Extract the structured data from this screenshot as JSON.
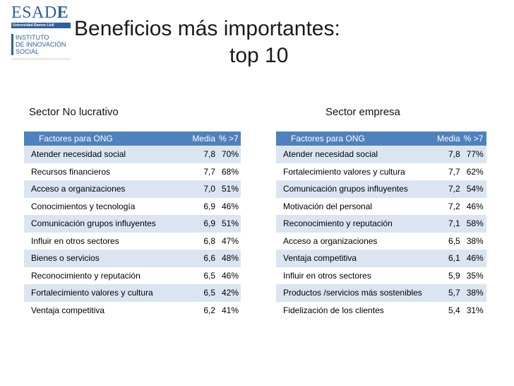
{
  "logo": {
    "wordmark_a": "ESAD",
    "wordmark_b": "E",
    "band": "Universidad Ramon Llull",
    "inst_lines": [
      "INSTITUTO",
      "DE INNOVACIÓN",
      "SOCIAL"
    ]
  },
  "title": {
    "line1": "Beneficios más importantes:",
    "line2": "top 10"
  },
  "sections": {
    "left": "Sector No lucrativo",
    "right": "Sector empresa"
  },
  "tables": {
    "left": {
      "headers": [
        "Factores para ONG",
        "Media",
        "% >7"
      ],
      "rows": [
        [
          "Atender necesidad social",
          "7,8",
          "70%"
        ],
        [
          "Recursos financieros",
          "7,7",
          "68%"
        ],
        [
          "Acceso a organizaciones",
          "7,0",
          "51%"
        ],
        [
          "Conocimientos y tecnología",
          "6,9",
          "46%"
        ],
        [
          "Comunicación grupos influyentes",
          "6,9",
          "51%"
        ],
        [
          "Influir en otros sectores",
          "6,8",
          "47%"
        ],
        [
          "Bienes o servicios",
          "6,6",
          "48%"
        ],
        [
          "Reconocimiento y reputación",
          "6,5",
          "46%"
        ],
        [
          "Fortalecimiento valores y cultura",
          "6,5",
          "42%"
        ],
        [
          "Ventaja competitiva",
          "6,2",
          "41%"
        ]
      ]
    },
    "right": {
      "headers": [
        "Factores para ONG",
        "Media",
        "% >7"
      ],
      "rows": [
        [
          "Atender necesidad social",
          "7,8",
          "77%"
        ],
        [
          "Fortalecimiento valores y cultura",
          "7,7",
          "62%"
        ],
        [
          "Comunicación grupos influyentes",
          "7,2",
          "54%"
        ],
        [
          "Motivación del personal",
          "7,2",
          "46%"
        ],
        [
          "Reconocimiento y reputación",
          "7,1",
          "58%"
        ],
        [
          "Acceso a organizaciones",
          "6,5",
          "38%"
        ],
        [
          "Ventaja competitiva",
          "6,1",
          "46%"
        ],
        [
          "Influir en otros sectores",
          "5,9",
          "35%"
        ],
        [
          "Productos /servicios más sostenibles",
          "5,7",
          "38%"
        ],
        [
          "Fidelización de los clientes",
          "5,4",
          "31%"
        ]
      ]
    }
  },
  "colors": {
    "header_bg": "#4f81bd",
    "band_row": "#dbe5f1",
    "brand": "#2f5f9a"
  }
}
